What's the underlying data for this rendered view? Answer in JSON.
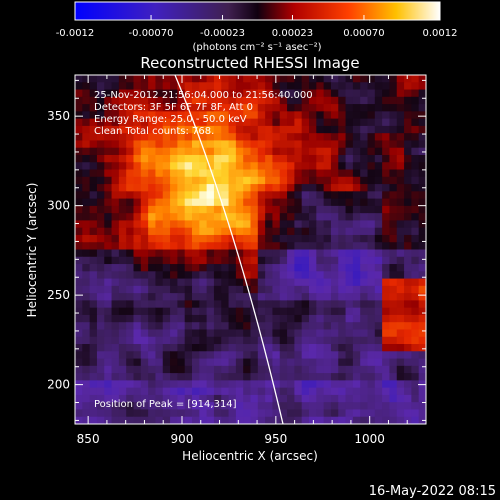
{
  "colorbar": {
    "tick_labels": [
      "-0.0012",
      "-0.00070",
      "-0.00023",
      "0.00023",
      "0.00070",
      "0.0012"
    ],
    "tick_values": [
      -0.0012,
      -0.0007,
      -0.00023,
      0.00023,
      0.0007,
      0.0012
    ],
    "range": [
      -0.0012,
      0.0012
    ],
    "unit_label": "(photons cm⁻² s⁻¹ asec⁻²)"
  },
  "chart_data": {
    "type": "heatmap",
    "title": "Reconstructed RHESSI Image",
    "xlabel": "Heliocentric X (arcsec)",
    "ylabel": "Heliocentric Y (arcsec)",
    "xlim": [
      843,
      1030
    ],
    "ylim": [
      178,
      373
    ],
    "x_ticks": [
      850,
      900,
      950,
      1000
    ],
    "y_ticks": [
      200,
      250,
      300,
      350
    ],
    "x_tick_labels": [
      "850",
      "900",
      "950",
      "1000"
    ],
    "y_tick_labels": [
      "200",
      "250",
      "300",
      "350"
    ],
    "peak": [
      914,
      314
    ],
    "annotations": [
      "25-Nov-2012 21:56:04.000 to 21:56:40.000",
      "Detectors: 3F 5F 6F 7F 8F, Att 0",
      "Energy Range: 25.0 - 50.0 keV",
      "Clean     Total counts: 768.",
      "Position of Peak = [914,314]"
    ]
  },
  "footer": {
    "timestamp": "16-May-2022 08:15"
  }
}
